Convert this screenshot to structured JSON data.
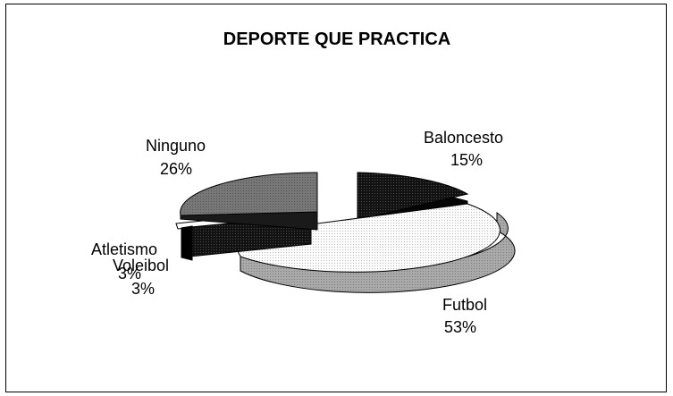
{
  "chart_data": {
    "type": "pie",
    "title": "DEPORTE QUE PRACTICA",
    "slices": [
      {
        "label": "Baloncesto",
        "value": 15,
        "pct": "15%",
        "fill": "#111111"
      },
      {
        "label": "Futbol",
        "value": 53,
        "pct": "53%",
        "fill": "#f2f2f2"
      },
      {
        "label": "Voleibol",
        "value": 3,
        "pct": "3%",
        "fill": "#ffffff"
      },
      {
        "label": "Atletismo",
        "value": 3,
        "pct": "3%",
        "fill": "#1a1a1a"
      },
      {
        "label": "Ninguno",
        "value": 26,
        "pct": "26%",
        "fill": "#6e6e6e"
      }
    ]
  }
}
